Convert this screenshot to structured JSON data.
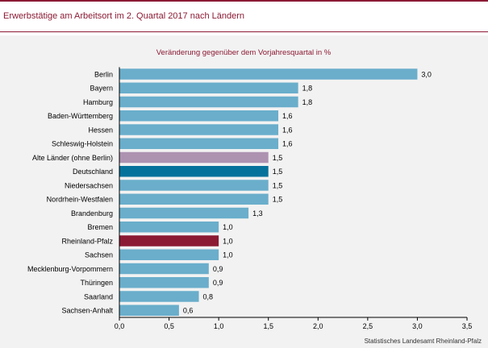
{
  "header": {
    "title": "Erwerbstätige am Arbeitsort im 2. Quartal 2017 nach Ländern"
  },
  "source": "Statistisches Landesamt Rheinland-Pfalz",
  "colors": {
    "accent": "#8b1a33",
    "default_bar": "#6aaecb",
    "highlight_bars": {
      "Alte Länder (ohne Berlin)": "#ae93b1",
      "Deutschland": "#05729c",
      "Rheinland-Pfalz": "#8b1a33"
    }
  },
  "chart_data": {
    "type": "bar",
    "orientation": "horizontal",
    "title": "Veränderung gegenüber dem Vorjahresquartal in %",
    "categories": [
      "Berlin",
      "Bayern",
      "Hamburg",
      "Baden-Württemberg",
      "Hessen",
      "Schleswig-Holstein",
      "Alte Länder (ohne Berlin)",
      "Deutschland",
      "Niedersachsen",
      "Nordrhein-Westfalen",
      "Brandenburg",
      "Bremen",
      "Rheinland-Pfalz",
      "Sachsen",
      "Mecklenburg-Vorpommern",
      "Thüringen",
      "Saarland",
      "Sachsen-Anhalt"
    ],
    "values": [
      3.0,
      1.8,
      1.8,
      1.6,
      1.6,
      1.6,
      1.5,
      1.5,
      1.5,
      1.5,
      1.3,
      1.0,
      1.0,
      1.0,
      0.9,
      0.9,
      0.8,
      0.6
    ],
    "value_labels": [
      "3,0",
      "1,8",
      "1,8",
      "1,6",
      "1,6",
      "1,6",
      "1,5",
      "1,5",
      "1,5",
      "1,5",
      "1,3",
      "1,0",
      "1,0",
      "1,0",
      "0,9",
      "0,9",
      "0,8",
      "0,6"
    ],
    "xlim": [
      0,
      3.5
    ],
    "xticks": [
      0,
      0.5,
      1.0,
      1.5,
      2.0,
      2.5,
      3.0,
      3.5
    ],
    "xtick_labels": [
      "0,0",
      "0,5",
      "1,0",
      "1,5",
      "2,0",
      "2,5",
      "3,0",
      "3,5"
    ],
    "grid": false,
    "legend": "none"
  }
}
